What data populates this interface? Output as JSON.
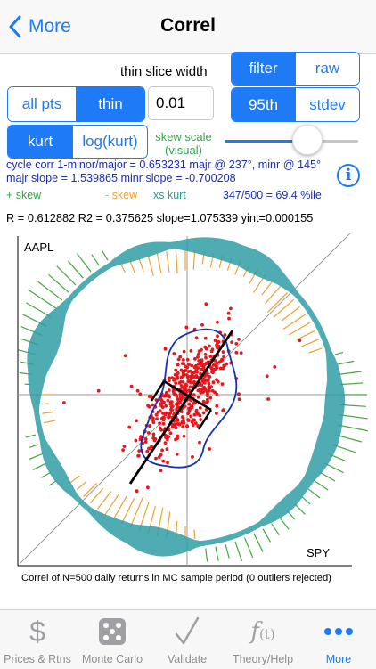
{
  "nav": {
    "back_label": "More",
    "title": "Correl"
  },
  "controls": {
    "slice_width_label": "thin slice width",
    "slice_width_value": "0.01",
    "filter_seg": [
      "filter",
      "raw"
    ],
    "pct_seg": [
      "95th",
      "stdev"
    ],
    "pts_seg": [
      "all pts",
      "thin"
    ],
    "kurt_seg": [
      "kurt",
      "log(kurt)"
    ],
    "skew_scale_label_1": "skew scale",
    "skew_scale_label_2": "(visual)",
    "skew_scale_level": 0.62
  },
  "stats": {
    "line1": "cycle corr 1-minor/major = 0.653231 majr @ 237°, minr @ 145°",
    "line2": "majr slope = 1.539865  minr slope = -0.700208",
    "legend_pos_skew": "+ skew",
    "legend_neg_skew": "- skew",
    "legend_xs_kurt": "xs kurt",
    "pctile": "347/500 =  69.4 %ile",
    "regression": "R = 0.612882  R2 = 0.375625  slope=1.075339  yint=0.000155"
  },
  "plot": {
    "y_label": "AAPL",
    "x_label": "SPY",
    "caption": "Correl of N=500 daily returns in MC sample period (0 outliers rejected)"
  },
  "colors": {
    "accent": "#1e7bf5",
    "points": "#e8161b",
    "ring": "#2f9da5",
    "pos_skew": "#43a83c",
    "neg_skew": "#f0a030",
    "kurt": "#2a9a8f",
    "contour": "#1a2fb0"
  },
  "tabs": [
    {
      "label": "Prices & Rtns",
      "icon": "dollar-icon"
    },
    {
      "label": "Monte Carlo",
      "icon": "dice-icon"
    },
    {
      "label": "Validate",
      "icon": "checkmark-icon"
    },
    {
      "label": "Theory/Help",
      "icon": "function-icon"
    },
    {
      "label": "More",
      "icon": "more-icon"
    }
  ]
}
